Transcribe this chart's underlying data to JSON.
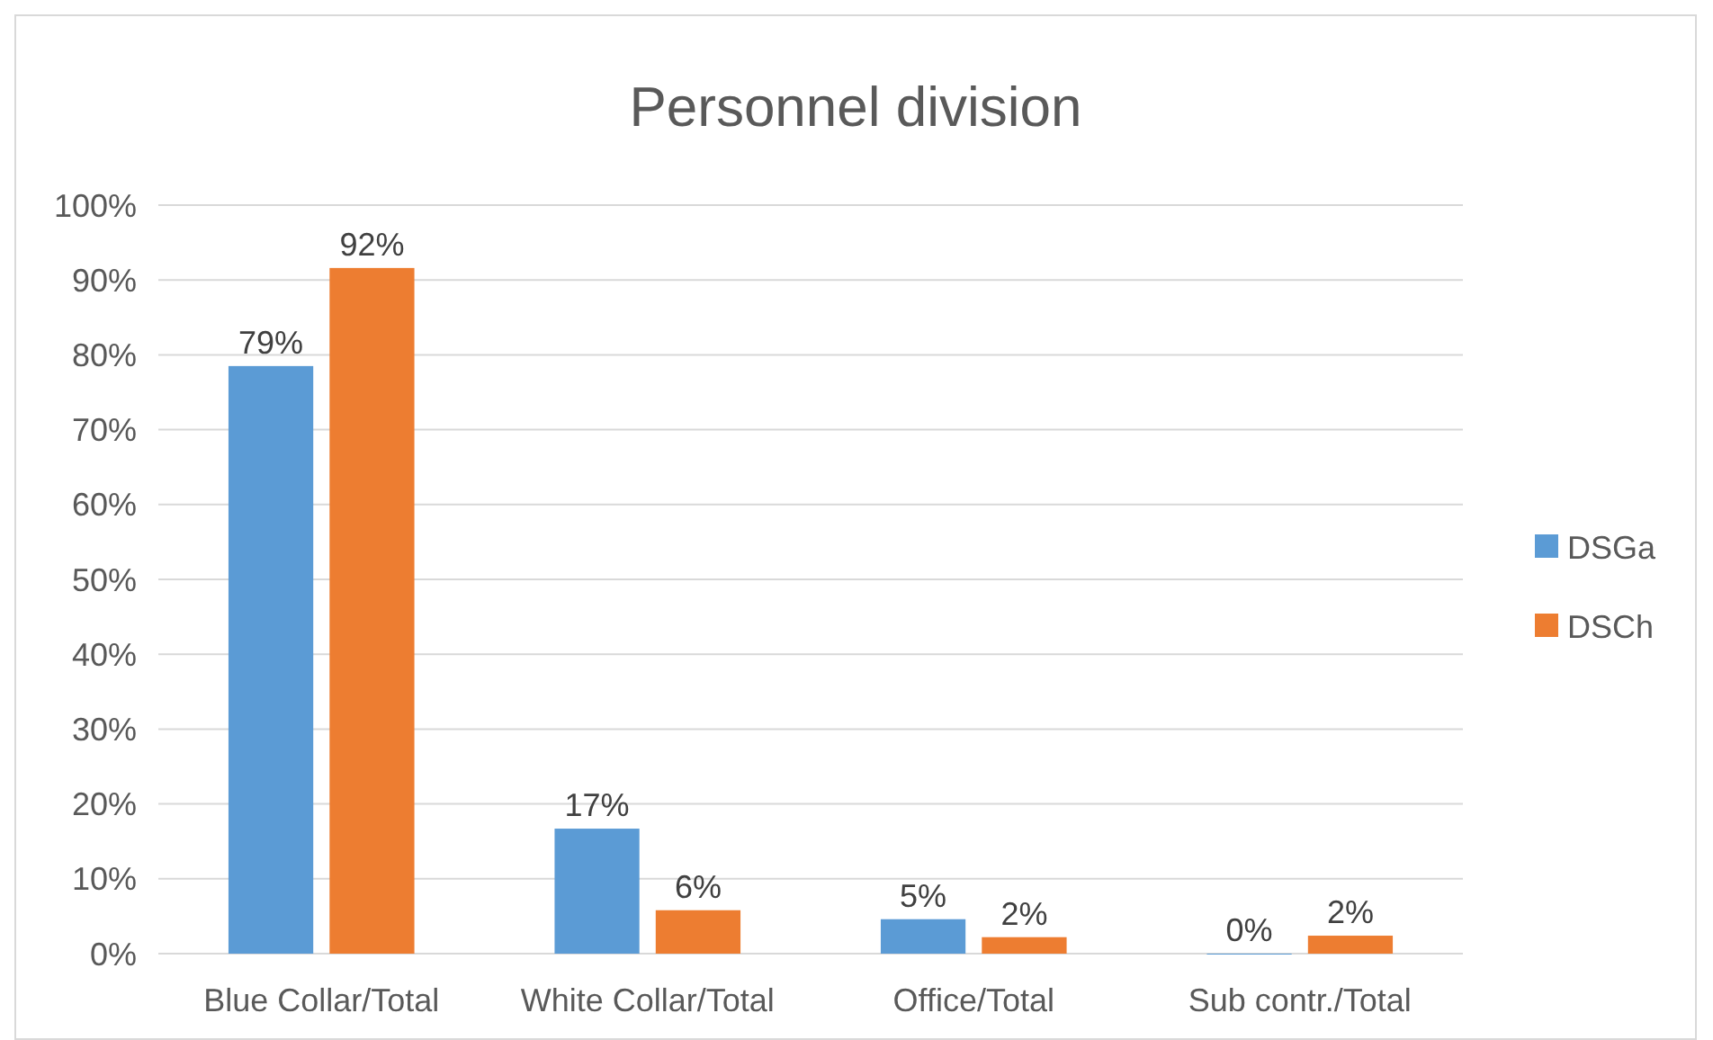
{
  "chart_data": {
    "type": "bar",
    "title": "Personnel division",
    "categories": [
      "Blue Collar/Total",
      "White Collar/Total",
      "Office/Total",
      "Sub contr./Total"
    ],
    "series": [
      {
        "name": "DSGa",
        "color": "#5b9bd5",
        "values": [
          78.5,
          16.7,
          4.6,
          0
        ],
        "value_labels": [
          "79%",
          "17%",
          "5%",
          "0%"
        ]
      },
      {
        "name": "DSCh",
        "color": "#ed7d31",
        "values": [
          91.6,
          5.8,
          2.2,
          2.4
        ],
        "value_labels": [
          "92%",
          "6%",
          "2%",
          "2%"
        ]
      }
    ],
    "ylim": [
      0,
      100
    ],
    "yticks": [
      {
        "value": 0,
        "label": "0%"
      },
      {
        "value": 10,
        "label": "10%"
      },
      {
        "value": 20,
        "label": "20%"
      },
      {
        "value": 30,
        "label": "30%"
      },
      {
        "value": 40,
        "label": "40%"
      },
      {
        "value": 50,
        "label": "50%"
      },
      {
        "value": 60,
        "label": "60%"
      },
      {
        "value": 70,
        "label": "70%"
      },
      {
        "value": 80,
        "label": "80%"
      },
      {
        "value": 90,
        "label": "90%"
      },
      {
        "value": 100,
        "label": "100%"
      }
    ],
    "grid": "y",
    "legend": "right"
  }
}
